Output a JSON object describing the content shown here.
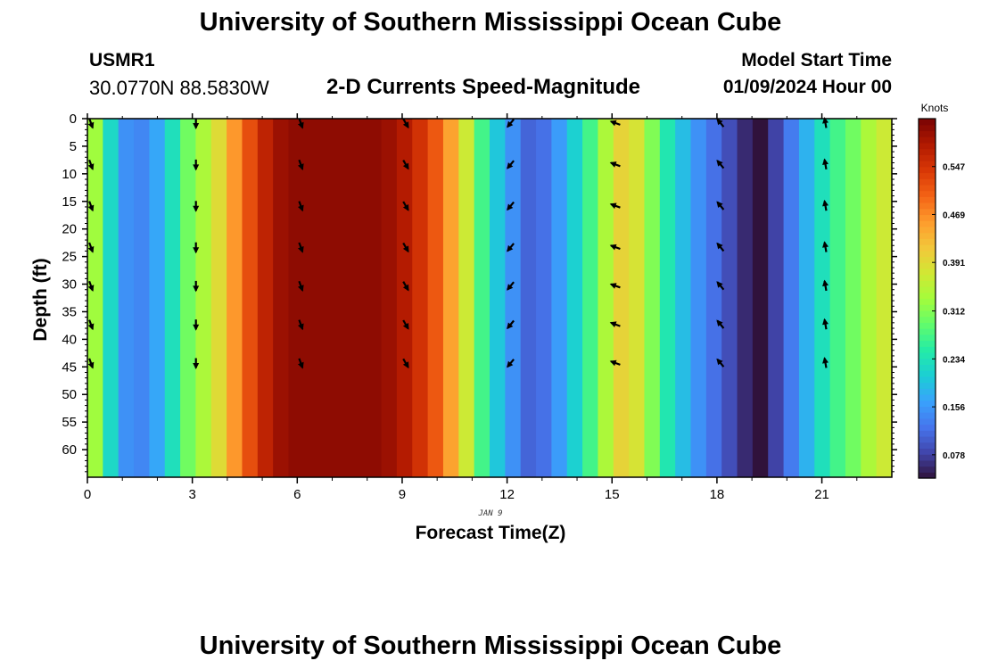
{
  "header": {
    "title": "University of Southern Mississippi Ocean Cube",
    "footer_title": "University of Southern Mississippi Ocean Cube",
    "station_id": "USMR1",
    "station_coords": "30.0770N  88.5830W",
    "model_start_label": "Model Start Time",
    "model_start_value": "01/09/2024 Hour 00"
  },
  "chart_data": {
    "type": "heatmap",
    "title": "2-D Currents Speed-Magnitude",
    "xlabel": "Forecast Time(Z)",
    "ylabel": "Depth (ft)",
    "date_label": "JAN 9",
    "xlim": [
      0,
      23
    ],
    "ylim": [
      0,
      65
    ],
    "y_inverted": true,
    "x_ticks": [
      "0",
      "3",
      "6",
      "9",
      "12",
      "15",
      "18",
      "21"
    ],
    "y_ticks": [
      "0",
      "5",
      "10",
      "15",
      "20",
      "25",
      "30",
      "35",
      "40",
      "45",
      "50",
      "55",
      "60"
    ],
    "colorbar": {
      "label": "Knots",
      "min": 0.04,
      "max": 0.625,
      "ticks": [
        "0.078",
        "0.156",
        "0.234",
        "0.312",
        "0.391",
        "0.469",
        "0.547"
      ]
    },
    "hourly_speed_knots": [
      0.33,
      0.22,
      0.15,
      0.14,
      0.17,
      0.23,
      0.3,
      0.34,
      0.39,
      0.46,
      0.52,
      0.57,
      0.6,
      0.61,
      0.61,
      0.61,
      0.61,
      0.61,
      0.61,
      0.6,
      0.58,
      0.55,
      0.51,
      0.45,
      0.37,
      0.27,
      0.2,
      0.15,
      0.11,
      0.12,
      0.16,
      0.21,
      0.27,
      0.34,
      0.4,
      0.38,
      0.31,
      0.24,
      0.19,
      0.15,
      0.12,
      0.09,
      0.06,
      0.04,
      0.08,
      0.13,
      0.18,
      0.23,
      0.27,
      0.3,
      0.34,
      0.37
    ],
    "arrows": [
      {
        "hour": 0,
        "direction_deg": 160
      },
      {
        "hour": 3,
        "direction_deg": 180
      },
      {
        "hour": 6,
        "direction_deg": 160
      },
      {
        "hour": 9,
        "direction_deg": 150
      },
      {
        "hour": 12,
        "direction_deg": 220
      },
      {
        "hour": 15,
        "direction_deg": 290
      },
      {
        "hour": 18,
        "direction_deg": 320
      },
      {
        "hour": 21,
        "direction_deg": 350
      }
    ],
    "arrow_depths_ft": [
      0,
      7.5,
      15,
      22.5,
      29.5,
      36.5,
      43.5
    ]
  },
  "colors": {
    "colormap": [
      "#30123b",
      "#4145ab",
      "#4675ed",
      "#39a2fc",
      "#1bcfd4",
      "#24eca6",
      "#61fc6c",
      "#a4fc3b",
      "#d1e834",
      "#f3c63a",
      "#fe9b2d",
      "#f36315",
      "#d93806",
      "#b11901",
      "#7a0403"
    ]
  }
}
